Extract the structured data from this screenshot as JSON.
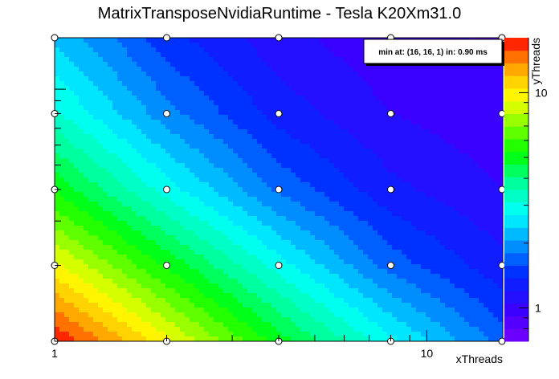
{
  "chart_data": {
    "type": "heatmap",
    "title": "MatrixTransposeNvidiaRuntime - Tesla K20Xm31.0",
    "xlabel": "xThreads",
    "ylabel": "yThreads",
    "x_scale": "log",
    "y_scale": "log",
    "xlim": [
      1,
      16
    ],
    "ylim": [
      1,
      16
    ],
    "x_tick_labels": [
      "1",
      "10"
    ],
    "y_tick_labels": [
      "1",
      "10"
    ],
    "colorbar_tick_labels": [
      "1",
      "10"
    ],
    "annotation": "min at: (16, 16, 1) in: 0.90 ms",
    "grid": false,
    "legend": "none",
    "x": [
      1,
      2,
      4,
      8,
      16
    ],
    "y": [
      1,
      2,
      4,
      8,
      16
    ],
    "z_scale": "log",
    "zlim": [
      0.7,
      18
    ],
    "z": [
      [
        18.0,
        9.5,
        5.0,
        2.8,
        1.7
      ],
      [
        9.5,
        5.2,
        2.9,
        1.7,
        1.25
      ],
      [
        5.2,
        2.9,
        1.75,
        1.25,
        1.05
      ],
      [
        3.2,
        1.9,
        1.3,
        1.05,
        0.95
      ],
      [
        2.3,
        1.45,
        1.1,
        0.95,
        0.9
      ]
    ],
    "colors": {
      "background": "#ffffff",
      "point_fill": "#ffffff",
      "point_stroke": "#000000"
    }
  }
}
